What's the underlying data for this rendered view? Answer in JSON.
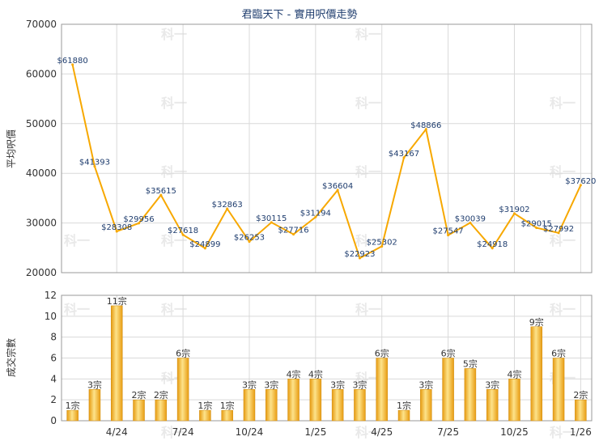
{
  "chart_data": [
    {
      "type": "line",
      "title": "君臨天下 - 實用呎價走勢",
      "ylabel": "平均呎價",
      "ylim": [
        20000,
        70000
      ],
      "yticks": [
        "20000",
        "30000",
        "40000",
        "50000",
        "60000",
        "70000"
      ],
      "grid": true,
      "color": "#f7a800",
      "values": [
        61880,
        41393,
        28308,
        29956,
        35615,
        27618,
        24899,
        32863,
        26253,
        30115,
        27716,
        31194,
        36604,
        22923,
        25302,
        43167,
        48866,
        27547,
        30039,
        24918,
        31902,
        29015,
        27992,
        37620
      ],
      "labels": [
        "$61880",
        "$41393",
        "$28308",
        "$29956",
        "$35615",
        "$27618",
        "$24899",
        "$32863",
        "$26253",
        "$30115",
        "$27716",
        "$31194",
        "$36604",
        "$22923",
        "$25302",
        "$43167",
        "$48866",
        "$27547",
        "$30039",
        "$24918",
        "$31902",
        "$29015",
        "$27992",
        "$37620"
      ]
    },
    {
      "type": "bar",
      "ylabel": "成交宗數",
      "ylim": [
        0,
        12
      ],
      "yticks": [
        "0",
        "2",
        "4",
        "6",
        "8",
        "10",
        "12"
      ],
      "grid": true,
      "color": "#f0a820",
      "values": [
        1,
        3,
        11,
        2,
        2,
        6,
        1,
        1,
        3,
        3,
        4,
        4,
        3,
        3,
        6,
        1,
        3,
        6,
        5,
        3,
        4,
        9,
        6,
        2
      ],
      "labels": [
        "1宗",
        "3宗",
        "11宗",
        "2宗",
        "2宗",
        "6宗",
        "1宗",
        "1宗",
        "3宗",
        "3宗",
        "4宗",
        "4宗",
        "3宗",
        "3宗",
        "6宗",
        "1宗",
        "3宗",
        "6宗",
        "5宗",
        "3宗",
        "4宗",
        "9宗",
        "6宗",
        "2宗"
      ],
      "xticks": [
        "4/24",
        "7/24",
        "10/24",
        "1/25",
        "4/25",
        "7/25",
        "10/25",
        "1/26"
      ],
      "xtick_index": [
        2,
        5,
        8,
        11,
        14,
        17,
        20,
        23
      ]
    }
  ],
  "watermark": "科一"
}
